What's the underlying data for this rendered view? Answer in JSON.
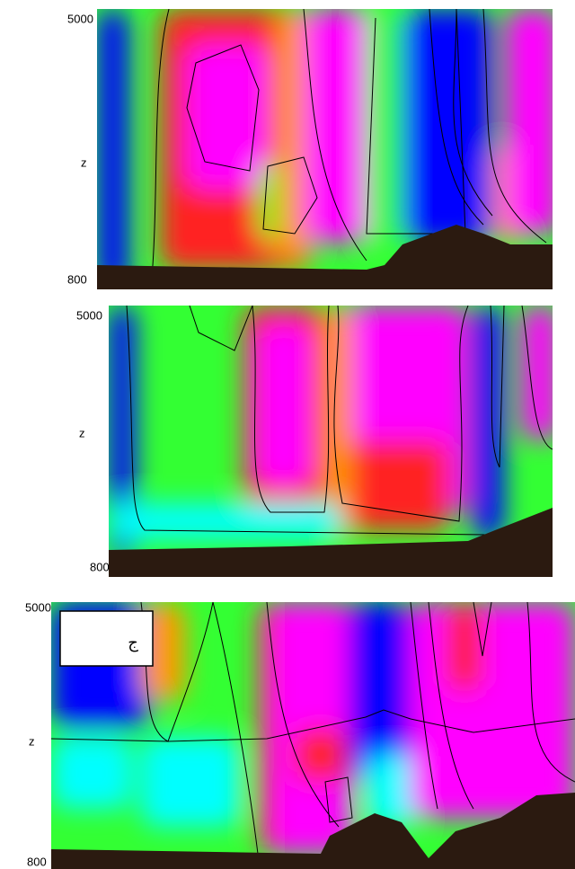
{
  "panels": [
    {
      "y_top": 5000,
      "y_label": "z",
      "y_bottom": 800
    },
    {
      "y_top": 5000,
      "y_label": "z",
      "y_bottom": 800
    },
    {
      "y_top": 5000,
      "y_label": "z",
      "y_bottom": 800,
      "label": "ج"
    }
  ]
}
